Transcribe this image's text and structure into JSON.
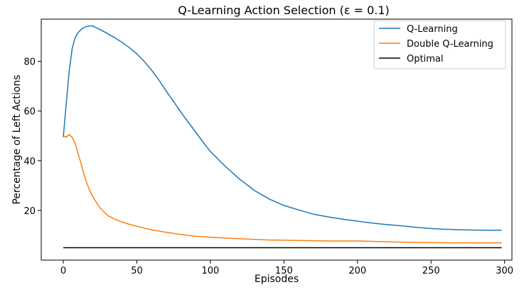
{
  "chart_data": {
    "type": "line",
    "title": "Q-Learning Action Selection (ε = 0.1)",
    "xlabel": "Episodes",
    "ylabel": "Percentage of Left Actions",
    "xlim": [
      -15,
      305
    ],
    "ylim": [
      0,
      97
    ],
    "xticks": [
      0,
      50,
      100,
      150,
      200,
      250,
      300
    ],
    "yticks": [
      20,
      40,
      60,
      80
    ],
    "grid": false,
    "legend_position": "top-right",
    "series": [
      {
        "name": "Q-Learning",
        "color": "#1f77b4",
        "x": [
          0,
          2,
          4,
          6,
          8,
          10,
          12,
          14,
          16,
          18,
          20,
          25,
          30,
          35,
          40,
          45,
          50,
          55,
          60,
          65,
          70,
          75,
          80,
          85,
          90,
          95,
          100,
          110,
          120,
          130,
          140,
          150,
          160,
          170,
          180,
          190,
          200,
          210,
          220,
          230,
          240,
          250,
          260,
          270,
          280,
          290,
          298
        ],
        "y": [
          49.5,
          63,
          76,
          85,
          89.5,
          91.5,
          92.8,
          93.6,
          94.1,
          94.3,
          94.2,
          92.8,
          91.2,
          89.5,
          87.6,
          85.5,
          83,
          80,
          76.5,
          72.5,
          68,
          63.8,
          59.5,
          55.5,
          51.5,
          47.5,
          43.7,
          37.8,
          32.5,
          28,
          24.6,
          22,
          20.2,
          18.5,
          17.4,
          16.5,
          15.7,
          14.9,
          14.3,
          13.8,
          13.2,
          12.7,
          12.4,
          12.2,
          12.1,
          12.0,
          12.0
        ]
      },
      {
        "name": "Double Q-Learning",
        "color": "#ff7f0e",
        "x": [
          0,
          2,
          4,
          6,
          8,
          10,
          12,
          14,
          16,
          18,
          20,
          25,
          30,
          35,
          40,
          45,
          50,
          60,
          70,
          80,
          90,
          100,
          120,
          140,
          160,
          180,
          200,
          220,
          240,
          260,
          280,
          298
        ],
        "y": [
          50,
          49.5,
          50.5,
          49.5,
          47,
          43,
          39,
          34.5,
          31,
          28,
          25.5,
          21,
          18,
          16.5,
          15.3,
          14.4,
          13.6,
          12.2,
          11.2,
          10.3,
          9.6,
          9.2,
          8.6,
          8.1,
          7.9,
          7.7,
          7.7,
          7.4,
          7.1,
          7.0,
          6.9,
          6.9
        ]
      },
      {
        "name": "Optimal",
        "color": "#000000",
        "x": [
          0,
          298
        ],
        "y": [
          5,
          5
        ]
      }
    ]
  }
}
